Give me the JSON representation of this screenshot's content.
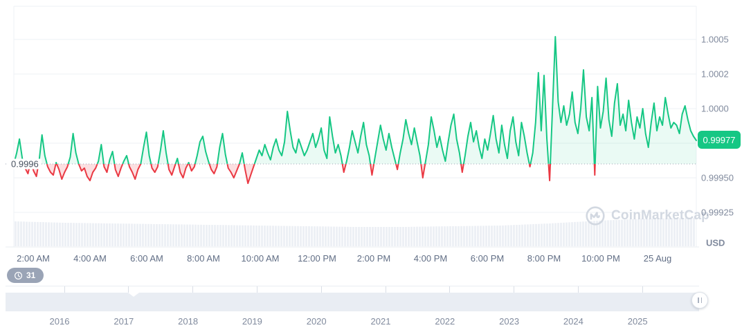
{
  "chart": {
    "currency_label": "USD",
    "current_price_label": "0.99977",
    "baseline_label": "0.9996",
    "history_badge_count": "31",
    "watermark_text": "CoinMarketCap",
    "colors": {
      "up": "#16c784",
      "down": "#ea3943",
      "up_fill": "rgba(22,199,132,0.09)",
      "down_fill": "rgba(234,57,67,0.16)",
      "price_badge": "#16c784",
      "gridline": "#eef1f5",
      "volume_bar": "#edf0f5",
      "baseline_dots": "#99a2b2"
    }
  },
  "chart_data": {
    "type": "line",
    "title": "",
    "ylabel": "USD",
    "grid": true,
    "legend_position": "none",
    "x_tick_labels": [
      "2:00 AM",
      "4:00 AM",
      "6:00 AM",
      "8:00 AM",
      "10:00 AM",
      "12:00 PM",
      "2:00 PM",
      "4:00 PM",
      "6:00 PM",
      "8:00 PM",
      "10:00 PM",
      "25 Aug"
    ],
    "y_tick_labels": [
      "1.0005",
      "1.0002",
      "1.0000",
      "0.99950",
      "0.99925"
    ],
    "y_tick_values": [
      1.0005,
      1.00025,
      1.0,
      0.9995,
      0.99925
    ],
    "ylim": [
      0.999,
      1.00074
    ],
    "baseline": 0.9996,
    "current_price": 0.99977,
    "series": [
      {
        "name": "price",
        "values": [
          0.9996,
          0.99968,
          0.99978,
          0.99964,
          0.99957,
          0.99953,
          0.99962,
          0.99955,
          0.99951,
          0.99963,
          0.99981,
          0.99966,
          0.99958,
          0.99954,
          0.99952,
          0.99961,
          0.99956,
          0.99949,
          0.99954,
          0.99958,
          0.99965,
          0.99982,
          0.99968,
          0.9996,
          0.99955,
          0.99957,
          0.99951,
          0.99948,
          0.99954,
          0.99957,
          0.99962,
          0.99974,
          0.99958,
          0.99954,
          0.99963,
          0.99969,
          0.99956,
          0.99951,
          0.99957,
          0.99962,
          0.99966,
          0.99958,
          0.99954,
          0.99949,
          0.99956,
          0.9996,
          0.99972,
          0.99983,
          0.99966,
          0.99957,
          0.99954,
          0.99958,
          0.9997,
          0.99984,
          0.99968,
          0.99956,
          0.99952,
          0.99958,
          0.99964,
          0.99954,
          0.9995,
          0.99957,
          0.99961,
          0.99955,
          0.99958,
          0.99966,
          0.99976,
          0.9998,
          0.99969,
          0.99962,
          0.99956,
          0.99953,
          0.99958,
          0.99972,
          0.99982,
          0.99967,
          0.99957,
          0.99954,
          0.9995,
          0.99955,
          0.9996,
          0.99968,
          0.99956,
          0.99946,
          0.99952,
          0.99958,
          0.99964,
          0.9997,
          0.99966,
          0.99974,
          0.99968,
          0.99963,
          0.99972,
          0.99978,
          0.9997,
          0.99966,
          0.99976,
          0.99998,
          0.99984,
          0.99972,
          0.99968,
          0.99978,
          0.99972,
          0.99966,
          0.9997,
          0.99976,
          0.99982,
          0.99972,
          0.99978,
          0.99986,
          0.9997,
          0.99964,
          0.99994,
          0.9998,
          0.99968,
          0.99974,
          0.99966,
          0.99954,
          0.99962,
          0.99972,
          0.99984,
          0.99976,
          0.99968,
          0.9998,
          0.9999,
          0.99974,
          0.99966,
          0.99952,
          0.99964,
          0.99976,
          0.99988,
          0.99978,
          0.9997,
          0.99982,
          0.99972,
          0.99964,
          0.99956,
          0.99968,
          0.99978,
          0.99992,
          0.99982,
          0.99974,
          0.99986,
          0.99976,
          0.99966,
          0.9995,
          0.99962,
          0.99974,
          0.99994,
          0.99984,
          0.99972,
          0.9998,
          0.9997,
          0.99962,
          0.99976,
          0.99988,
          0.99996,
          0.99978,
          0.99968,
          0.99954,
          0.99966,
          0.9998,
          0.9999,
          0.99976,
          0.99984,
          0.99972,
          0.99964,
          0.99978,
          0.9997,
          0.99982,
          0.99995,
          0.99978,
          0.99968,
          0.99988,
          0.99974,
          0.99964,
          0.99984,
          0.99994,
          0.99976,
          0.99966,
          0.9999,
          0.9998,
          0.99968,
          0.99958,
          0.99968,
          0.9999,
          1.00026,
          0.99984,
          1.00024,
          0.99978,
          0.99948,
          1.0,
          1.00052,
          1.00005,
          0.9999,
          1.00002,
          0.99988,
          0.99996,
          1.00012,
          0.9999,
          0.99982,
          1.0,
          1.00028,
          0.99994,
          0.99984,
          1.00008,
          0.99952,
          1.00016,
          0.99986,
          0.99998,
          1.00022,
          0.99992,
          0.9998,
          1.00004,
          1.00018,
          0.99988,
          0.99996,
          0.99984,
          1.00006,
          0.9999,
          0.99978,
          0.99994,
          0.99986,
          1.0,
          0.99982,
          0.99972,
          0.9999,
          1.00004,
          0.99984,
          0.99994,
          0.99988,
          1.00008,
          0.99996,
          0.99986,
          0.9999,
          0.99988,
          0.99982,
          0.99996,
          1.00002,
          0.99992,
          0.99984,
          0.9998,
          0.99977
        ]
      }
    ],
    "volume_profile_relative": [
      36,
      34,
      33,
      32,
      31,
      30,
      29,
      28,
      28,
      29,
      30,
      33,
      37,
      40,
      41
    ],
    "navigator_years": [
      "2016",
      "2017",
      "2018",
      "2019",
      "2020",
      "2021",
      "2022",
      "2023",
      "2024",
      "2025"
    ]
  }
}
